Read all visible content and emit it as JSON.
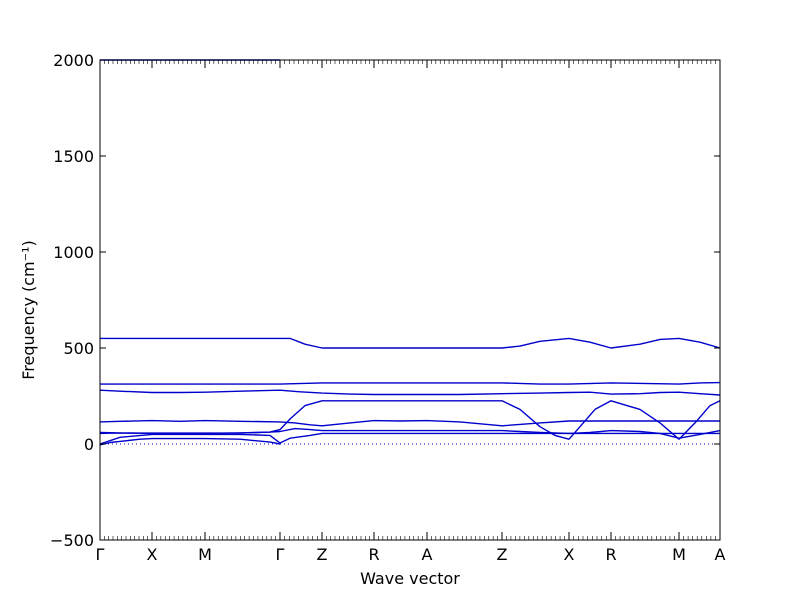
{
  "chart_data": {
    "type": "line",
    "title": "",
    "xlabel": "Wave vector",
    "ylabel": "Frequency (cm⁻¹)",
    "ylim": [
      -500,
      2000
    ],
    "yticks": [
      "2000",
      "1500",
      "1000",
      "500",
      "0",
      "−500"
    ],
    "ytick_values": [
      2000,
      1500,
      1000,
      500,
      0,
      -500
    ],
    "high_symmetry_labels": [
      "Γ",
      "X",
      "M",
      "Γ",
      "Z",
      "R",
      "A",
      "Z",
      "X",
      "R",
      "M",
      "A"
    ],
    "x_range": [
      0,
      620
    ],
    "high_symmetry_x": [
      0,
      52,
      105,
      180,
      222,
      274,
      327,
      402,
      469,
      511,
      579,
      620
    ],
    "zero_line": true,
    "grid": false,
    "line_color": "#0000cc",
    "series": [
      {
        "x": [
          0,
          10,
          40,
          52,
          80,
          105,
          140,
          170,
          180
        ],
        "values": [
          -5,
          8,
          25,
          28,
          28,
          28,
          25,
          10,
          0
        ]
      },
      {
        "x": [
          0,
          20,
          52,
          80,
          105,
          140,
          170,
          180,
          190,
          210,
          222,
          250,
          274,
          300,
          327,
          360,
          402,
          440,
          469,
          490,
          511,
          550,
          579,
          600,
          620
        ],
        "values": [
          0,
          35,
          50,
          50,
          50,
          50,
          45,
          5,
          30,
          45,
          55,
          55,
          55,
          55,
          55,
          55,
          55,
          55,
          55,
          55,
          55,
          55,
          55,
          55,
          55
        ]
      },
      {
        "x": [
          0,
          20,
          52,
          80,
          105,
          140,
          170,
          180,
          195,
          210,
          222,
          250,
          274,
          300,
          327,
          360,
          402,
          420,
          440,
          469,
          490,
          511,
          540,
          560,
          579,
          600,
          620
        ],
        "values": [
          60,
          58,
          55,
          55,
          55,
          58,
          62,
          65,
          80,
          75,
          70,
          70,
          70,
          70,
          70,
          70,
          70,
          65,
          60,
          55,
          60,
          70,
          65,
          55,
          30,
          50,
          70
        ]
      },
      {
        "x": [
          0,
          20,
          52,
          80,
          105,
          140,
          180,
          195,
          210,
          222,
          250,
          274,
          300,
          327,
          360,
          402,
          440,
          469,
          490,
          511,
          540,
          560,
          579,
          600,
          620
        ],
        "values": [
          115,
          118,
          122,
          118,
          122,
          118,
          115,
          110,
          100,
          95,
          110,
          122,
          120,
          122,
          115,
          95,
          110,
          120,
          120,
          120,
          120,
          120,
          120,
          120,
          120
        ]
      },
      {
        "x": [
          0,
          10,
          30,
          52,
          80,
          105,
          140,
          170,
          180,
          190,
          205,
          222,
          250,
          274,
          300,
          327,
          360,
          402,
          420,
          440,
          455,
          469,
          480,
          495,
          511,
          540,
          560,
          579,
          595,
          610,
          620
        ],
        "values": [
          55,
          56,
          57,
          57,
          57,
          57,
          57,
          62,
          75,
          130,
          200,
          225,
          225,
          225,
          225,
          225,
          225,
          225,
          180,
          90,
          45,
          25,
          90,
          180,
          225,
          180,
          110,
          25,
          110,
          200,
          225
        ]
      },
      {
        "x": [
          0,
          20,
          52,
          80,
          105,
          140,
          180,
          200,
          222,
          250,
          274,
          300,
          327,
          360,
          402,
          440,
          469,
          490,
          511,
          540,
          560,
          579,
          600,
          620
        ],
        "values": [
          280,
          275,
          268,
          268,
          270,
          275,
          280,
          272,
          265,
          260,
          258,
          258,
          258,
          258,
          262,
          265,
          268,
          270,
          260,
          262,
          268,
          270,
          262,
          255
        ]
      },
      {
        "x": [
          0,
          52,
          105,
          180,
          222,
          274,
          327,
          402,
          440,
          469,
          511,
          579,
          600,
          620
        ],
        "values": [
          312,
          312,
          312,
          312,
          318,
          318,
          318,
          318,
          312,
          312,
          318,
          312,
          318,
          320
        ]
      },
      {
        "x": [
          0,
          52,
          105,
          150,
          180,
          190,
          205,
          222,
          274,
          327,
          402,
          420,
          440,
          469,
          490,
          511,
          540,
          560,
          579,
          600,
          620
        ],
        "values": [
          550,
          550,
          550,
          550,
          550,
          550,
          520,
          500,
          500,
          500,
          500,
          510,
          535,
          550,
          530,
          500,
          520,
          545,
          550,
          530,
          500
        ]
      },
      {
        "x": [
          0,
          52,
          105,
          180
        ],
        "values": [
          2000,
          2000,
          2000,
          2000
        ]
      }
    ]
  }
}
